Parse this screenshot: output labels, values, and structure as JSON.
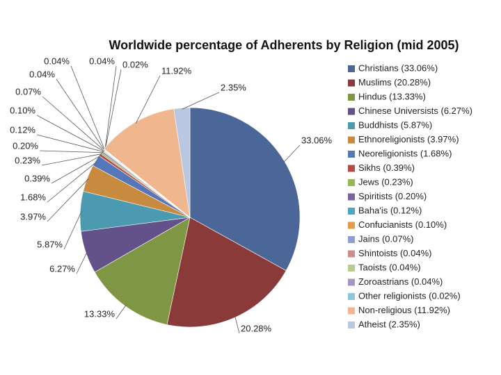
{
  "chart_data": {
    "type": "pie",
    "title": "Worldwide percentage of Adherents by Religion (mid 2005)",
    "categories": [
      "Christians (33.06%)",
      "Muslims (20.28%)",
      "Hindus (13.33%)",
      "Chinese Universists (6.27%)",
      "Buddhists (5.87%)",
      "Ethnoreligionists (3.97%)",
      "Neoreligionists (1.68%)",
      "Sikhs (0.39%)",
      "Jews (0.23%)",
      "Spiritists (0.20%)",
      "Baha'is (0.12%)",
      "Confucianists (0.10%)",
      "Jains (0.07%)",
      "Shintoists (0.04%)",
      "Taoists (0.04%)",
      "Zoroastrians (0.04%)",
      "Other religionists (0.02%)",
      "Non-religious (11.92%)",
      "Atheist (2.35%)"
    ],
    "values": [
      33.06,
      20.28,
      13.33,
      6.27,
      5.87,
      3.97,
      1.68,
      0.39,
      0.23,
      0.2,
      0.12,
      0.1,
      0.07,
      0.04,
      0.04,
      0.04,
      0.02,
      11.92,
      2.35
    ],
    "value_labels": [
      "33.06%",
      "20.28%",
      "13.33%",
      "6.27%",
      "5.87%",
      "3.97%",
      "1.68%",
      "0.39%",
      "0.23%",
      "0.20%",
      "0.12%",
      "0.10%",
      "0.07%",
      "0.04%",
      "0.04%",
      "0.04%",
      "0.02%",
      "11.92%",
      "2.35%"
    ],
    "colors": [
      "#4a6797",
      "#8b3a3a",
      "#7f9645",
      "#63518a",
      "#4c9ab0",
      "#c88a3e",
      "#5577b8",
      "#b84a47",
      "#98b654",
      "#7b62a0",
      "#4fa7c1",
      "#e59a4a",
      "#8ba0d0",
      "#d08a88",
      "#b9cc8e",
      "#a596c4",
      "#8ec8d8",
      "#f0b78e",
      "#b9c7e0"
    ],
    "legend": "right"
  }
}
